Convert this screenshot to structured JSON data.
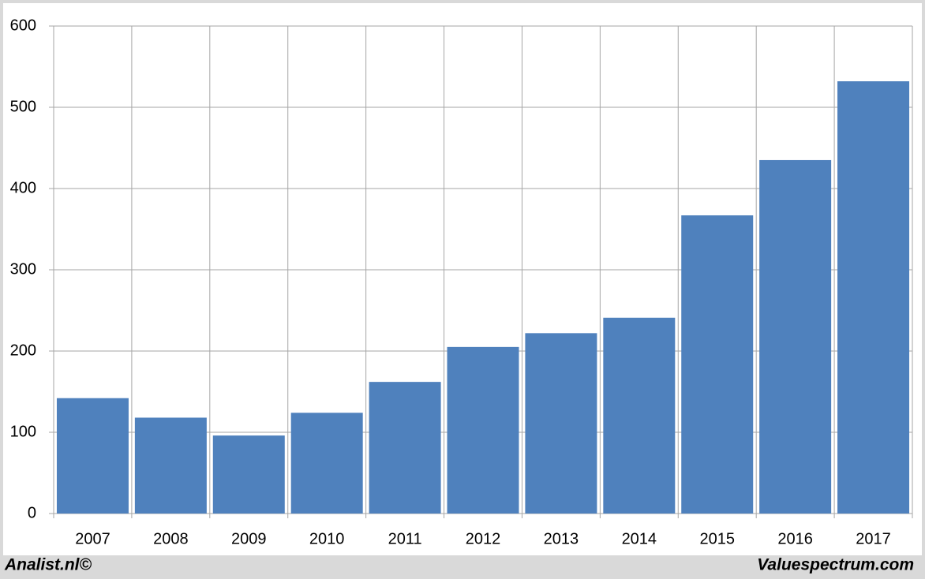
{
  "chart_data": {
    "type": "bar",
    "categories": [
      "2007",
      "2008",
      "2009",
      "2010",
      "2011",
      "2012",
      "2013",
      "2014",
      "2015",
      "2016",
      "2017"
    ],
    "values": [
      142,
      118,
      96,
      124,
      162,
      205,
      222,
      241,
      367,
      435,
      532
    ],
    "color": "#4f81bd",
    "ylim": [
      0,
      600
    ],
    "yticks": [
      0,
      100,
      200,
      300,
      400,
      500,
      600
    ],
    "grid": true,
    "source_left": "Analist.nl©",
    "source_right": "Valuespectrum.com"
  }
}
